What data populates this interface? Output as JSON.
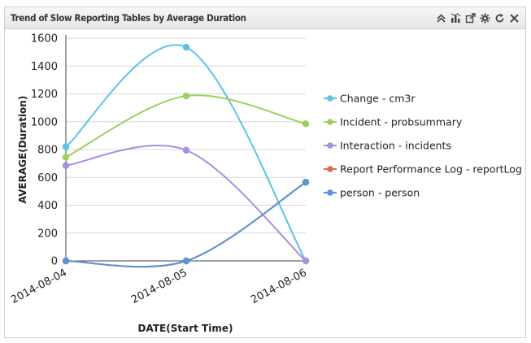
{
  "widget": {
    "title": "Trend of Slow Reporting Tables by Average Duration",
    "toolbar": [
      "collapse-icon",
      "chart-type-icon",
      "popout-icon",
      "settings-icon",
      "refresh-icon",
      "close-icon"
    ]
  },
  "chart_data": {
    "type": "line",
    "title": "Trend of Slow Reporting Tables by Average Duration",
    "xlabel": "DATE(Start Time)",
    "ylabel": "AVERAGE(Duration)",
    "categories": [
      "2014-08-04",
      "2014-08-05",
      "2014-08-06"
    ],
    "ylim": [
      0,
      1600
    ],
    "yticks": [
      0,
      200,
      400,
      600,
      800,
      1000,
      1200,
      1400,
      1600
    ],
    "grid": true,
    "legend_position": "right",
    "series": [
      {
        "name": "Change - cm3r",
        "color": "#5bc4e4",
        "values": [
          820,
          1535,
          0
        ]
      },
      {
        "name": "Incident - probsummary",
        "color": "#9dd15a",
        "values": [
          745,
          1185,
          985
        ]
      },
      {
        "name": "Interaction - incidents",
        "color": "#a98fe0",
        "values": [
          685,
          795,
          0
        ]
      },
      {
        "name": "Report Performance Log - reportLog",
        "color": "#e26a55",
        "values": [
          0,
          0,
          565
        ]
      },
      {
        "name": "person - person",
        "color": "#5b93db",
        "values": [
          0,
          0,
          565
        ]
      }
    ]
  }
}
